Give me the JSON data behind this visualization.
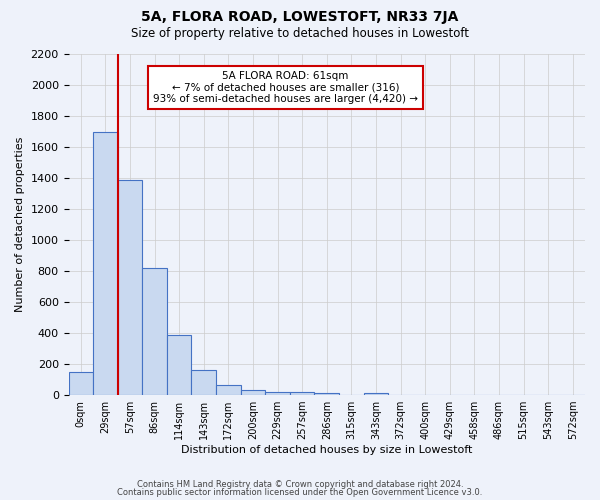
{
  "title": "5A, FLORA ROAD, LOWESTOFT, NR33 7JA",
  "subtitle": "Size of property relative to detached houses in Lowestoft",
  "xlabel": "Distribution of detached houses by size in Lowestoft",
  "ylabel": "Number of detached properties",
  "bin_labels": [
    "0sqm",
    "29sqm",
    "57sqm",
    "86sqm",
    "114sqm",
    "143sqm",
    "172sqm",
    "200sqm",
    "229sqm",
    "257sqm",
    "286sqm",
    "315sqm",
    "343sqm",
    "372sqm",
    "400sqm",
    "429sqm",
    "458sqm",
    "486sqm",
    "515sqm",
    "543sqm",
    "572sqm"
  ],
  "bar_values": [
    150,
    1700,
    1390,
    820,
    390,
    160,
    65,
    30,
    20,
    18,
    15,
    0,
    12,
    0,
    0,
    0,
    0,
    0,
    0,
    0,
    0
  ],
  "bar_color": "#c9d9f0",
  "bar_edge_color": "#4472c4",
  "red_line_x": 1.5,
  "annotation_title": "5A FLORA ROAD: 61sqm",
  "annotation_line1": "← 7% of detached houses are smaller (316)",
  "annotation_line2": "93% of semi-detached houses are larger (4,420) →",
  "annotation_box_edge": "#cc0000",
  "red_line_color": "#cc0000",
  "ylim": [
    0,
    2200
  ],
  "yticks": [
    0,
    200,
    400,
    600,
    800,
    1000,
    1200,
    1400,
    1600,
    1800,
    2000,
    2200
  ],
  "footer1": "Contains HM Land Registry data © Crown copyright and database right 2024.",
  "footer2": "Contains public sector information licensed under the Open Government Licence v3.0.",
  "grid_color": "#cccccc",
  "bg_color": "#eef2fa"
}
